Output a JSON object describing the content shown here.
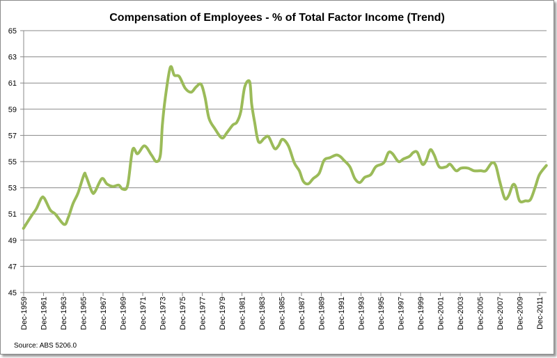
{
  "chart_data": {
    "type": "line",
    "title": "Compensation of Employees - % of Total Factor Income (Trend)",
    "xlabel": "",
    "ylabel": "",
    "ylim": [
      45,
      65
    ],
    "yticks": [
      "45",
      "47",
      "49",
      "51",
      "53",
      "55",
      "57",
      "59",
      "61",
      "63",
      "65"
    ],
    "xtick_labels": [
      "Dec-1959",
      "Dec-1961",
      "Dec-1963",
      "Dec-1965",
      "Dec-1967",
      "Dec-1969",
      "Dec-1971",
      "Dec-1973",
      "Dec-1975",
      "Dec-1977",
      "Dec-1979",
      "Dec-1981",
      "Dec-1983",
      "Dec-1985",
      "Dec-1987",
      "Dec-1989",
      "Dec-1991",
      "Dec-1993",
      "Dec-1995",
      "Dec-1997",
      "Dec-1999",
      "Dec-2001",
      "Dec-2003",
      "Dec-2005",
      "Dec-2007",
      "Dec-2009",
      "Dec-2011"
    ],
    "grid": "horizontal",
    "legend": "none",
    "source": "Source: ABS 5206.0",
    "line_color": "#9bbb59",
    "series": [
      {
        "name": "Compensation of Employees (% of total factor income)",
        "x": [
          1959.9,
          1960.7,
          1961.2,
          1961.7,
          1962.0,
          1962.6,
          1963.1,
          1964.0,
          1964.4,
          1964.9,
          1965.4,
          1966.0,
          1966.2,
          1966.8,
          1967.1,
          1967.8,
          1968.3,
          1968.9,
          1969.5,
          1969.9,
          1970.4,
          1970.9,
          1971.4,
          1972.1,
          1972.8,
          1973.3,
          1973.7,
          1973.9,
          1974.2,
          1974.7,
          1975.1,
          1975.6,
          1976.2,
          1976.8,
          1977.3,
          1977.8,
          1978.2,
          1978.6,
          1979.2,
          1979.9,
          1980.4,
          1981.0,
          1981.4,
          1981.8,
          1982.2,
          1982.7,
          1982.9,
          1983.2,
          1983.6,
          1984.2,
          1984.6,
          1985.2,
          1985.6,
          1986.0,
          1986.6,
          1987.2,
          1987.7,
          1988.1,
          1988.6,
          1989.1,
          1989.7,
          1990.2,
          1990.8,
          1991.4,
          1991.8,
          1992.2,
          1992.8,
          1993.3,
          1993.8,
          1994.3,
          1994.9,
          1995.4,
          1996.0,
          1996.3,
          1996.7,
          1997.1,
          1997.7,
          1998.2,
          1998.8,
          1999.2,
          1999.6,
          2000.1,
          2000.5,
          2000.9,
          2001.3,
          2001.8,
          2002.5,
          2002.9,
          2003.5,
          2004.0,
          2004.7,
          2005.3,
          2006.0,
          2006.5,
          2007.1,
          2007.5,
          2007.9,
          2008.4,
          2008.8,
          2009.2,
          2009.5,
          2009.9,
          2010.5,
          2011.0,
          2011.5,
          2011.9,
          2012.6
        ],
        "values": [
          49.9,
          50.85,
          51.4,
          52.2,
          52.2,
          51.3,
          51.0,
          50.2,
          50.7,
          51.8,
          52.6,
          54.0,
          53.9,
          52.7,
          52.7,
          53.7,
          53.3,
          53.1,
          53.2,
          52.9,
          53.2,
          55.9,
          55.6,
          56.2,
          55.5,
          55.0,
          55.5,
          57.8,
          59.9,
          62.2,
          61.6,
          61.5,
          60.6,
          60.3,
          60.7,
          60.9,
          59.9,
          58.3,
          57.5,
          56.8,
          57.2,
          57.8,
          58.0,
          58.8,
          60.7,
          61.1,
          59.4,
          58.0,
          56.5,
          56.8,
          56.9,
          56.0,
          56.2,
          56.7,
          56.2,
          54.9,
          54.3,
          53.5,
          53.3,
          53.7,
          54.1,
          55.1,
          55.3,
          55.5,
          55.4,
          55.1,
          54.6,
          53.7,
          53.4,
          53.8,
          54.0,
          54.6,
          54.8,
          55.0,
          55.7,
          55.6,
          55.0,
          55.2,
          55.4,
          55.7,
          55.7,
          54.8,
          55.1,
          55.9,
          55.5,
          54.6,
          54.6,
          54.8,
          54.3,
          54.5,
          54.5,
          54.3,
          54.3,
          54.3,
          54.9,
          54.7,
          53.5,
          52.2,
          52.4,
          53.2,
          53.1,
          52.0,
          52.0,
          52.1,
          53.1,
          54.0,
          54.7
        ]
      }
    ]
  }
}
